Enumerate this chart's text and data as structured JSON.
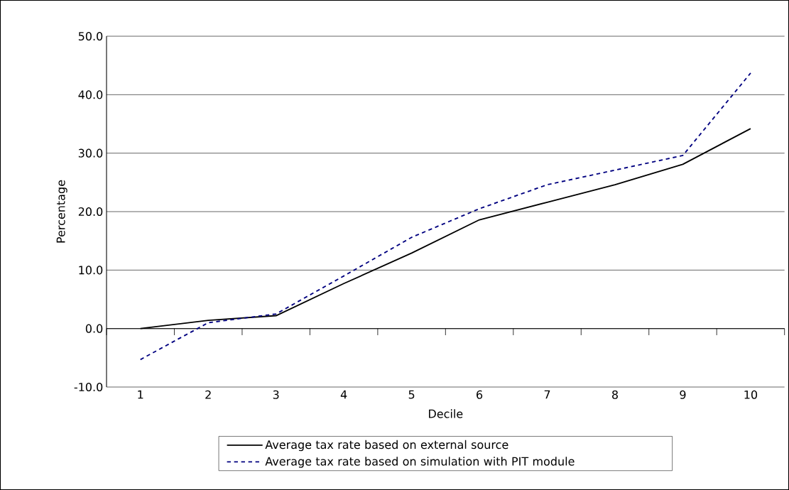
{
  "chart_data": {
    "type": "line",
    "xlabel": "Decile",
    "ylabel": "Percentage",
    "categories": [
      "1",
      "2",
      "3",
      "4",
      "5",
      "6",
      "7",
      "8",
      "9",
      "10"
    ],
    "series": [
      {
        "name": "Average tax rate based on external source",
        "color": "#000000",
        "line_style": "solid",
        "values": [
          0.0,
          1.4,
          2.2,
          7.7,
          12.9,
          18.6,
          21.6,
          24.6,
          28.1,
          34.2
        ]
      },
      {
        "name": "Average tax rate based on simulation with PIT module",
        "color": "#000080",
        "line_style": "dashed",
        "values": [
          -5.3,
          1.0,
          2.5,
          9.0,
          15.6,
          20.5,
          24.6,
          27.1,
          29.6,
          43.7
        ]
      }
    ],
    "ylim": [
      -10,
      50
    ],
    "yticks": [
      {
        "value": -10,
        "label": "-10.0"
      },
      {
        "value": 0,
        "label": "0.0"
      },
      {
        "value": 10,
        "label": "10.0"
      },
      {
        "value": 20,
        "label": "20.0"
      },
      {
        "value": 30,
        "label": "30.0"
      },
      {
        "value": 40,
        "label": "40.0"
      },
      {
        "value": 50,
        "label": "50.0"
      }
    ],
    "grid": "y",
    "legend": "bottom"
  }
}
